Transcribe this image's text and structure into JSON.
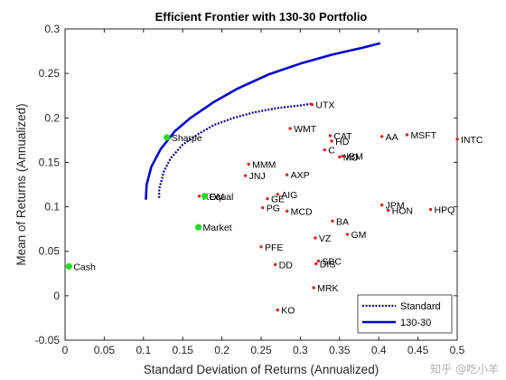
{
  "chart_data": {
    "type": "scatter",
    "title": "Efficient Frontier with 130-30 Portfolio",
    "xlabel": "Standard Deviation of Returns (Annualized)",
    "ylabel": "Mean of Returns (Annualized)",
    "xlim": [
      0,
      0.5
    ],
    "ylim": [
      -0.05,
      0.3
    ],
    "xticks": [
      0,
      0.05,
      0.1,
      0.15,
      0.2,
      0.25,
      0.3,
      0.35,
      0.4,
      0.45,
      0.5
    ],
    "yticks": [
      -0.05,
      0,
      0.05,
      0.1,
      0.15,
      0.2,
      0.25,
      0.3
    ],
    "grid": false,
    "legend_position": "bottom-right",
    "series": [
      {
        "name": "Standard",
        "style": "dotted",
        "color": "#00008b",
        "points": [
          [
            0.12,
            0.11
          ],
          [
            0.12,
            0.12
          ],
          [
            0.126,
            0.14
          ],
          [
            0.135,
            0.155
          ],
          [
            0.15,
            0.17
          ],
          [
            0.17,
            0.182
          ],
          [
            0.19,
            0.192
          ],
          [
            0.215,
            0.2
          ],
          [
            0.24,
            0.206
          ],
          [
            0.27,
            0.211
          ],
          [
            0.3,
            0.214
          ],
          [
            0.315,
            0.216
          ]
        ]
      },
      {
        "name": "130-30",
        "style": "solid",
        "color": "#0000cc",
        "points": [
          [
            0.103,
            0.108
          ],
          [
            0.104,
            0.125
          ],
          [
            0.11,
            0.145
          ],
          [
            0.122,
            0.165
          ],
          [
            0.14,
            0.185
          ],
          [
            0.16,
            0.2
          ],
          [
            0.19,
            0.218
          ],
          [
            0.22,
            0.233
          ],
          [
            0.26,
            0.249
          ],
          [
            0.3,
            0.261
          ],
          [
            0.34,
            0.271
          ],
          [
            0.38,
            0.279
          ],
          [
            0.402,
            0.284
          ]
        ]
      }
    ],
    "highlight_points": [
      {
        "label": "Sharpe",
        "x": 0.13,
        "y": 0.178,
        "color": "#22dd22"
      },
      {
        "label": "Equal",
        "x": 0.178,
        "y": 0.112,
        "color": "#22dd22"
      },
      {
        "label": "Market",
        "x": 0.17,
        "y": 0.077,
        "color": "#22dd22"
      },
      {
        "label": "Cash",
        "x": 0.005,
        "y": 0.033,
        "color": "#22dd22"
      }
    ],
    "assets": [
      {
        "label": "UTX",
        "x": 0.315,
        "y": 0.215
      },
      {
        "label": "WMT",
        "x": 0.287,
        "y": 0.188
      },
      {
        "label": "CAT",
        "x": 0.338,
        "y": 0.18
      },
      {
        "label": "HD",
        "x": 0.34,
        "y": 0.174
      },
      {
        "label": "C",
        "x": 0.331,
        "y": 0.164
      },
      {
        "label": "MO",
        "x": 0.35,
        "y": 0.156
      },
      {
        "label": "IBM",
        "x": 0.354,
        "y": 0.157
      },
      {
        "label": "AA",
        "x": 0.404,
        "y": 0.179
      },
      {
        "label": "MSFT",
        "x": 0.436,
        "y": 0.181
      },
      {
        "label": "INTC",
        "x": 0.5,
        "y": 0.176
      },
      {
        "label": "MMM",
        "x": 0.234,
        "y": 0.148
      },
      {
        "label": "JNJ",
        "x": 0.23,
        "y": 0.135
      },
      {
        "label": "AXP",
        "x": 0.283,
        "y": 0.136
      },
      {
        "label": "XOM",
        "x": 0.171,
        "y": 0.112
      },
      {
        "label": "AIG",
        "x": 0.271,
        "y": 0.114
      },
      {
        "label": "GE",
        "x": 0.258,
        "y": 0.109
      },
      {
        "label": "PG",
        "x": 0.252,
        "y": 0.099
      },
      {
        "label": "MCD",
        "x": 0.283,
        "y": 0.095
      },
      {
        "label": "JPM",
        "x": 0.404,
        "y": 0.102
      },
      {
        "label": "HON",
        "x": 0.412,
        "y": 0.096
      },
      {
        "label": "HPQ",
        "x": 0.466,
        "y": 0.097
      },
      {
        "label": "BA",
        "x": 0.341,
        "y": 0.084
      },
      {
        "label": "GM",
        "x": 0.36,
        "y": 0.069
      },
      {
        "label": "VZ",
        "x": 0.319,
        "y": 0.065
      },
      {
        "label": "PFE",
        "x": 0.25,
        "y": 0.055
      },
      {
        "label": "SBC",
        "x": 0.323,
        "y": 0.039
      },
      {
        "label": "DIS",
        "x": 0.32,
        "y": 0.036
      },
      {
        "label": "DD",
        "x": 0.268,
        "y": 0.035
      },
      {
        "label": "MRK",
        "x": 0.317,
        "y": 0.009
      },
      {
        "label": "KO",
        "x": 0.271,
        "y": -0.016
      }
    ],
    "asset_color": "#e02020"
  },
  "watermark": "知乎 @吃小羊"
}
